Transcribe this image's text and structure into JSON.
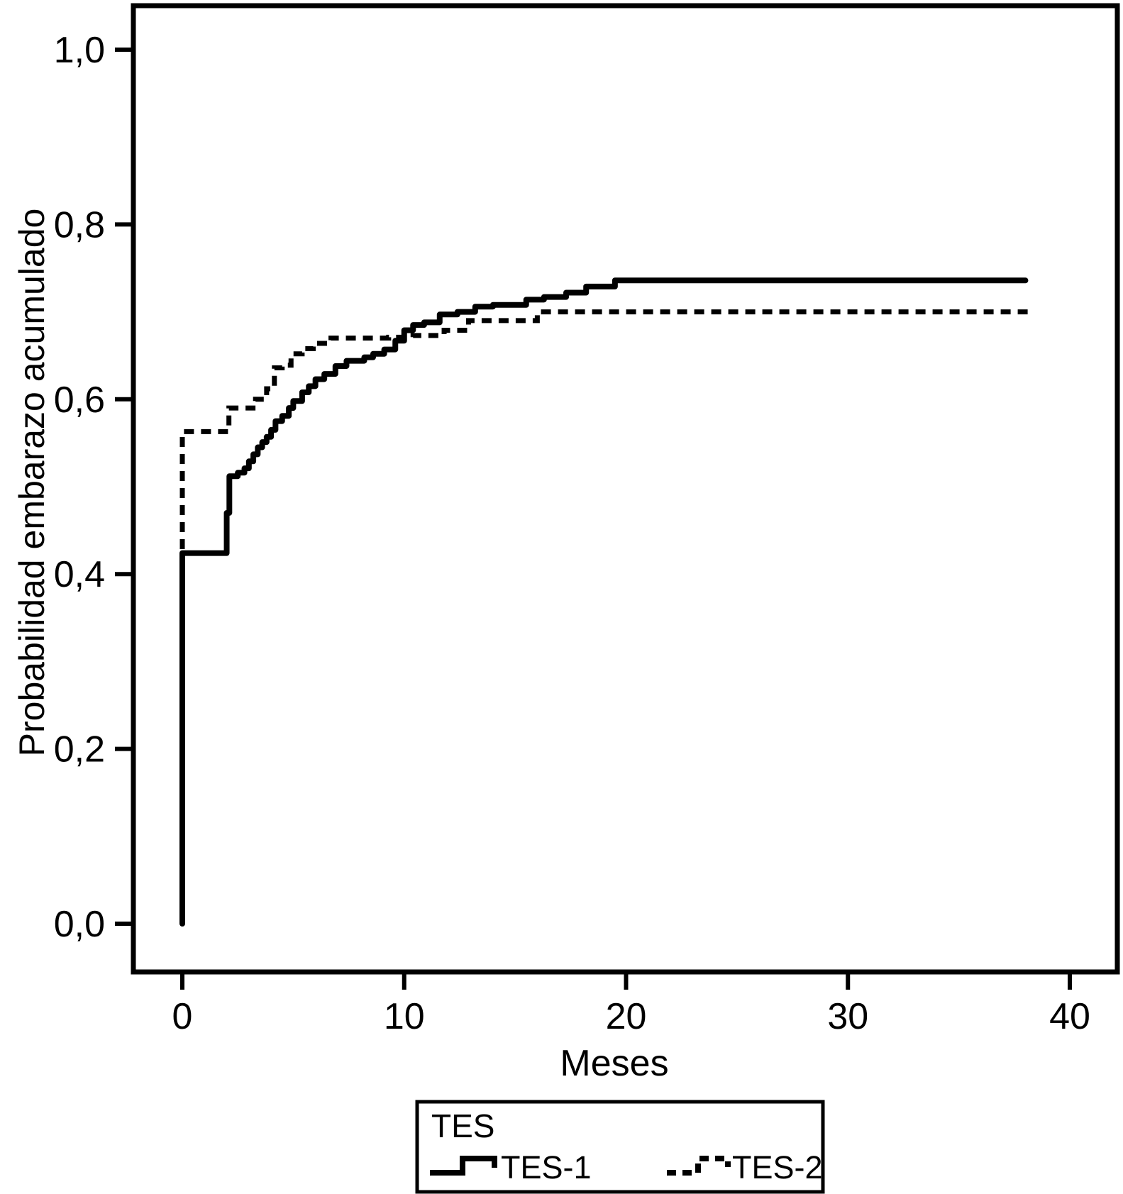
{
  "colors": {
    "foreground": "#000000",
    "background": "#ffffff"
  },
  "chart_data": {
    "type": "line",
    "subtype": "kaplan-meier-step",
    "title": "",
    "xlabel": "Meses",
    "ylabel": "Probabilidad embarazo acumulado",
    "grid": false,
    "xlim": [
      -2.2,
      42.1
    ],
    "ylim": [
      -0.055,
      1.05
    ],
    "x_ticks": {
      "values": [
        0,
        10,
        20,
        30,
        40
      ],
      "labels": [
        "0",
        "10",
        "20",
        "30",
        "40"
      ]
    },
    "y_ticks": {
      "values": [
        0.0,
        0.2,
        0.4,
        0.6,
        0.8,
        1.0
      ],
      "labels": [
        "0,0",
        "0,2",
        "0,4",
        "0,6",
        "0,8",
        "1,0"
      ]
    },
    "legend": {
      "title": "TES",
      "position": "bottom-center",
      "entries": [
        {
          "label": "TES-1",
          "line_style": "solid"
        },
        {
          "label": "TES-2",
          "line_style": "dashed"
        }
      ]
    },
    "series": [
      {
        "name": "TES-1",
        "line_style": "solid",
        "color": "#000000",
        "points": [
          [
            0,
            0
          ],
          [
            0,
            0.424
          ],
          [
            2.0,
            0.424
          ],
          [
            2.0,
            0.47
          ],
          [
            2.12,
            0.47
          ],
          [
            2.12,
            0.512
          ],
          [
            2.5,
            0.516
          ],
          [
            2.8,
            0.521
          ],
          [
            3.0,
            0.529
          ],
          [
            3.2,
            0.537
          ],
          [
            3.4,
            0.545
          ],
          [
            3.6,
            0.551
          ],
          [
            3.8,
            0.557
          ],
          [
            4.0,
            0.565
          ],
          [
            4.2,
            0.575
          ],
          [
            4.5,
            0.581
          ],
          [
            4.8,
            0.59
          ],
          [
            5.0,
            0.598
          ],
          [
            5.4,
            0.608
          ],
          [
            5.7,
            0.615
          ],
          [
            6.0,
            0.623
          ],
          [
            6.4,
            0.629
          ],
          [
            6.9,
            0.638
          ],
          [
            7.4,
            0.644
          ],
          [
            8.2,
            0.648
          ],
          [
            8.6,
            0.652
          ],
          [
            9.1,
            0.657
          ],
          [
            9.6,
            0.667
          ],
          [
            10.0,
            0.679
          ],
          [
            10.4,
            0.685
          ],
          [
            10.9,
            0.688
          ],
          [
            11.6,
            0.697
          ],
          [
            12.4,
            0.7
          ],
          [
            13.2,
            0.706
          ],
          [
            14.0,
            0.708
          ],
          [
            15.5,
            0.714
          ],
          [
            16.3,
            0.717
          ],
          [
            17.3,
            0.722
          ],
          [
            18.2,
            0.729
          ],
          [
            19.5,
            0.736
          ],
          [
            38.0,
            0.736
          ]
        ]
      },
      {
        "name": "TES-2",
        "line_style": "dashed",
        "color": "#000000",
        "points": [
          [
            0,
            0
          ],
          [
            0,
            0.563
          ],
          [
            2.0,
            0.563
          ],
          [
            2.1,
            0.59
          ],
          [
            3.0,
            0.59
          ],
          [
            3.3,
            0.6
          ],
          [
            3.8,
            0.612
          ],
          [
            4.15,
            0.636
          ],
          [
            4.5,
            0.639
          ],
          [
            4.9,
            0.652
          ],
          [
            5.4,
            0.658
          ],
          [
            5.9,
            0.664
          ],
          [
            6.7,
            0.67
          ],
          [
            9.3,
            0.671
          ],
          [
            10.4,
            0.673
          ],
          [
            11.8,
            0.679
          ],
          [
            12.9,
            0.69
          ],
          [
            16.0,
            0.7
          ],
          [
            38.4,
            0.7
          ]
        ]
      }
    ]
  }
}
